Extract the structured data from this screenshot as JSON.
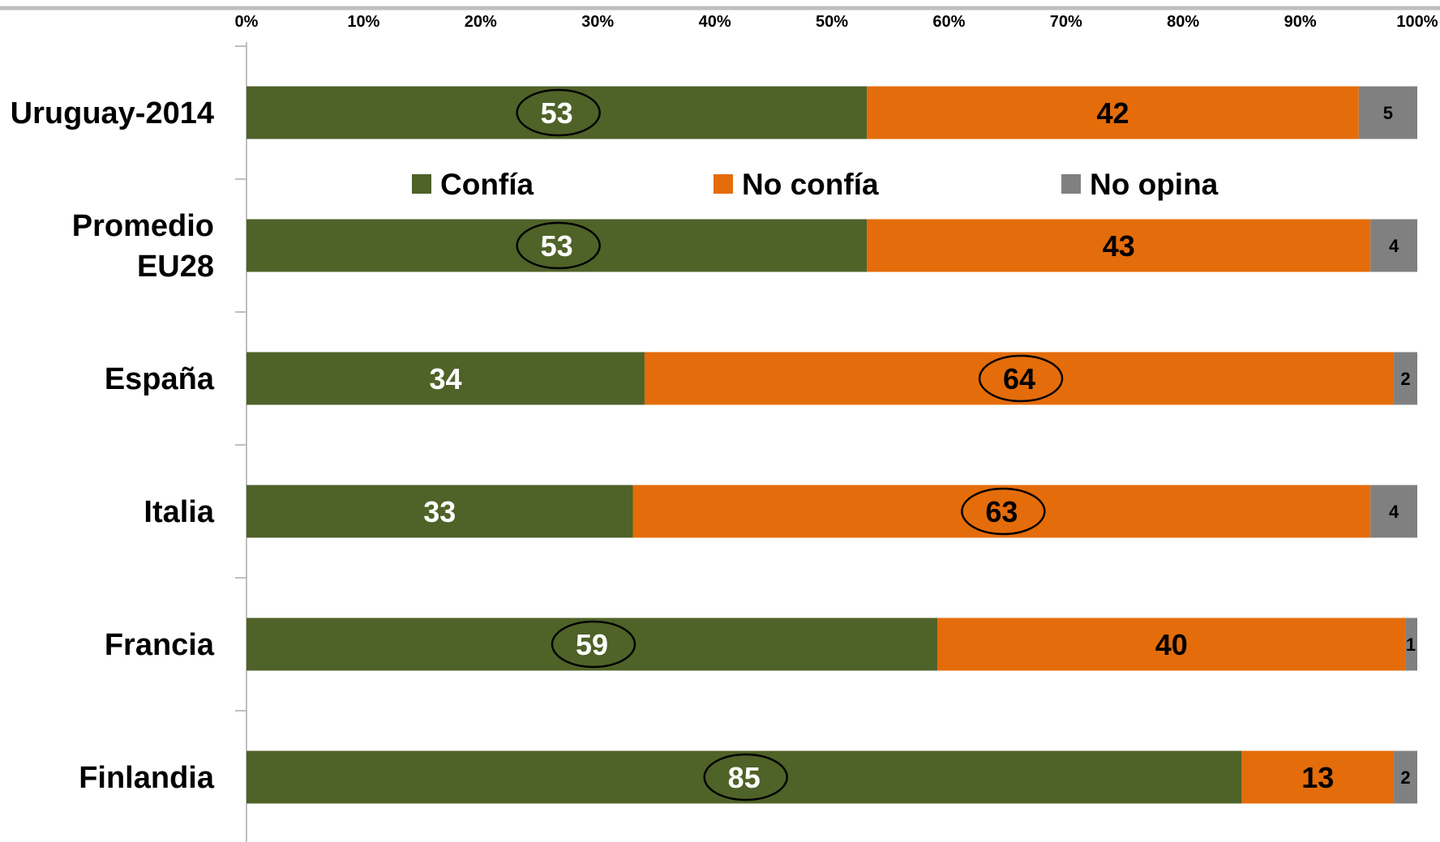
{
  "chart_data": {
    "type": "bar",
    "orientation": "horizontal",
    "stacked": true,
    "percent_stacked": true,
    "title": "",
    "xlabel": "",
    "ylabel": "",
    "xlim": [
      0,
      100
    ],
    "x_ticks": [
      "0%",
      "10%",
      "20%",
      "30%",
      "40%",
      "50%",
      "60%",
      "70%",
      "80%",
      "90%",
      "100%"
    ],
    "categories": [
      [
        "Uruguay-2014"
      ],
      [
        "Promedio",
        "EU28"
      ],
      [
        "España"
      ],
      [
        "Italia"
      ],
      [
        "Francia"
      ],
      [
        "Finlandia"
      ]
    ],
    "series": [
      {
        "name": "Confía",
        "color": "#4f6228",
        "values": [
          53,
          53,
          34,
          33,
          59,
          85
        ],
        "label_color": "#ffffff"
      },
      {
        "name": "No confía",
        "color": "#e46c0a",
        "values": [
          42,
          43,
          64,
          63,
          40,
          13
        ],
        "label_color": "#000000"
      },
      {
        "name": "No opina",
        "color": "#808080",
        "values": [
          5,
          4,
          2,
          4,
          1,
          2
        ],
        "label_color": "#000000"
      }
    ],
    "circled": [
      {
        "category_index": 0,
        "series_index": 0
      },
      {
        "category_index": 1,
        "series_index": 0
      },
      {
        "category_index": 2,
        "series_index": 1
      },
      {
        "category_index": 3,
        "series_index": 1
      },
      {
        "category_index": 4,
        "series_index": 0
      },
      {
        "category_index": 5,
        "series_index": 0
      }
    ],
    "gridlines": false,
    "axis_position": "top",
    "legend_placement": "between first and second bar"
  }
}
